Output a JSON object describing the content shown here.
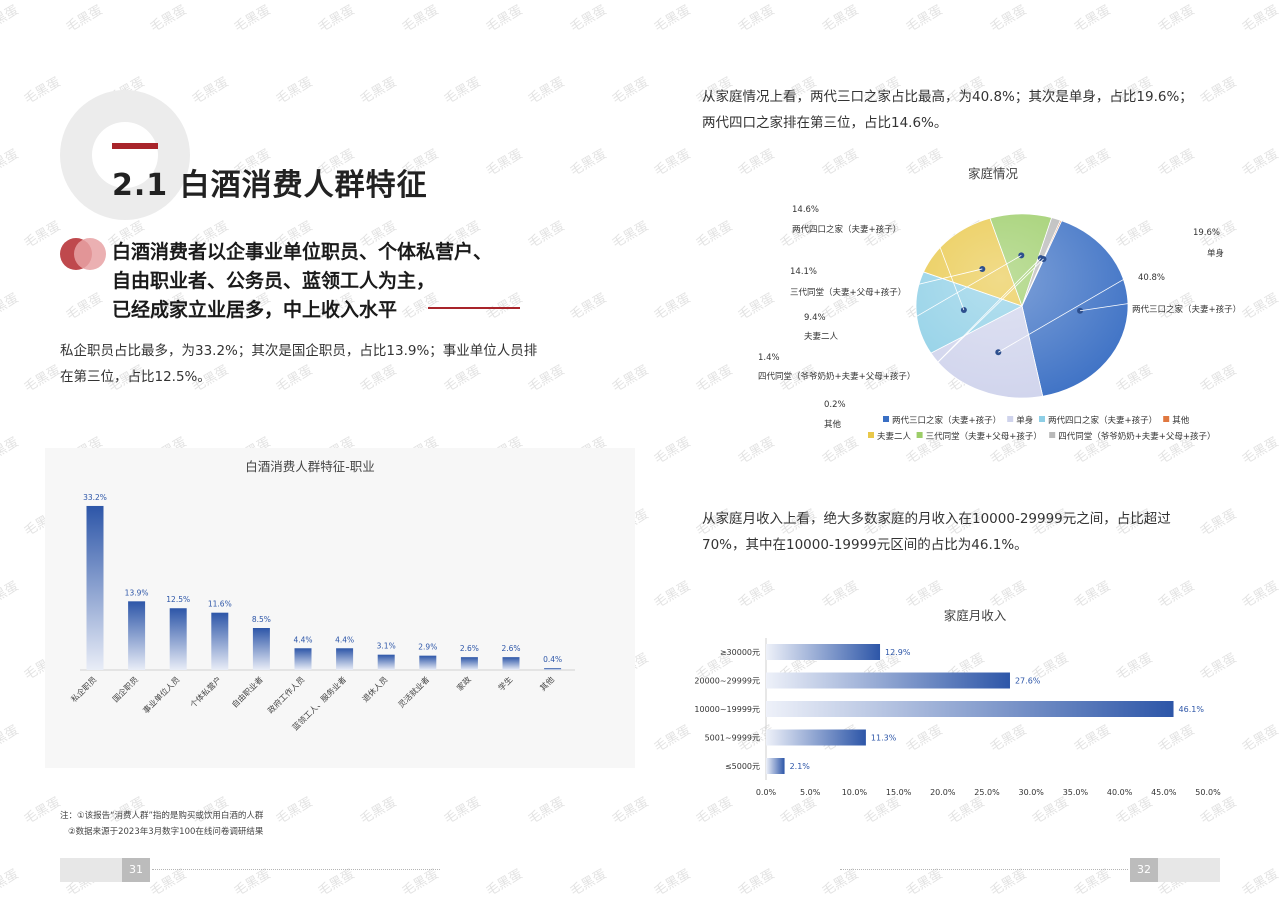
{
  "left": {
    "section_title": "2.1 白酒消费人群特征",
    "subhead": [
      "白酒消费者以企事业单位职员、个体私营户、",
      "自由职业者、公务员、蓝领工人为主，",
      "已经成家立业居多，中上收入水平"
    ],
    "paragraph": [
      "私企职员占比最多，为33.2%；其次是国企职员，占比13.9%；事业单位人员排",
      "在第三位，占比12.5%。"
    ],
    "notes": [
      "注：①该报告“消费人群”指的是购买或饮用白酒的人群",
      "②数据来源于2023年3月数字100在线问卷调研结果"
    ],
    "page_number": "31"
  },
  "right": {
    "paragraph1": [
      "从家庭情况上看，两代三口之家占比最高，为40.8%；其次是单身，占比19.6%；",
      "两代四口之家排在第三位，占比14.6%。"
    ],
    "paragraph2": [
      "从家庭月收入上看，绝大多数家庭的月收入在10000-29999元之间，占比超过",
      "70%，其中在10000-19999元区间的占比为46.1%。"
    ],
    "page_number": "32"
  },
  "watermark": "毛黑蛋",
  "colors": {
    "accent_red": "#a8242a",
    "bar_blue": "#2d56a8",
    "pie_blue": "#3a6fc4"
  },
  "chart_data": [
    {
      "type": "bar",
      "title": "白酒消费人群特征-职业",
      "categories": [
        "私企职员",
        "国企职员",
        "事业单位人员",
        "个体私营户",
        "自由职业者",
        "政府工作人员",
        "蓝领工人、服务业者",
        "退休人员",
        "灵活就业者",
        "家政",
        "学生",
        "其他"
      ],
      "values": [
        33.2,
        13.9,
        12.5,
        11.6,
        8.5,
        4.4,
        4.4,
        3.1,
        2.9,
        2.6,
        2.6,
        0.4
      ],
      "value_labels": [
        "33.2%",
        "13.9%",
        "12.5%",
        "11.6%",
        "8.5%",
        "4.4%",
        "4.4%",
        "3.1%",
        "2.9%",
        "2.6%",
        "2.6%",
        "0.4%"
      ],
      "ylim": [
        0,
        34
      ]
    },
    {
      "type": "pie",
      "title": "家庭情况",
      "slices": [
        {
          "name": "两代三口之家（夫妻+孩子）",
          "value": 40.8,
          "label": "40.8%",
          "color": "#3a6fc4"
        },
        {
          "name": "单身",
          "value": 19.6,
          "label": "19.6%",
          "color": "#cfd3ec"
        },
        {
          "name": "两代四口之家（夫妻+孩子）",
          "value": 14.6,
          "label": "14.6%",
          "color": "#8ecfe6"
        },
        {
          "name": "三代同堂（夫妻+父母+孩子）",
          "value": 14.1,
          "label": "14.1%",
          "color": "#e9c84a"
        },
        {
          "name": "夫妻二人",
          "value": 9.4,
          "label": "9.4%",
          "color": "#9ccd68"
        },
        {
          "name": "四代同堂（爷爷奶奶+夫妻+父母+孩子）",
          "value": 1.4,
          "label": "1.4%",
          "color": "#b9b9b9"
        },
        {
          "name": "其他",
          "value": 0.2,
          "label": "0.2%",
          "color": "#e07840"
        }
      ],
      "legend": [
        "两代三口之家（夫妻+孩子）",
        "单身",
        "两代四口之家（夫妻+孩子）",
        "其他",
        "三代同堂（夫妻+父母+孩子）",
        "夫妻二人",
        "四代同堂（爷爷奶奶+夫妻+父母+孩子）"
      ],
      "legend_position": "bottom"
    },
    {
      "type": "bar",
      "orientation": "horizontal",
      "title": "家庭月收入",
      "categories": [
        "≥30000元",
        "20000~29999元",
        "10000~19999元",
        "5001~9999元",
        "≤5000元"
      ],
      "values": [
        12.9,
        27.6,
        46.1,
        11.3,
        2.1
      ],
      "value_labels": [
        "12.9%",
        "27.6%",
        "46.1%",
        "11.3%",
        "2.1%"
      ],
      "xlim": [
        0,
        50
      ],
      "xticks": [
        "0.0%",
        "5.0%",
        "10.0%",
        "15.0%",
        "20.0%",
        "25.0%",
        "30.0%",
        "35.0%",
        "40.0%",
        "45.0%",
        "50.0%"
      ]
    }
  ]
}
